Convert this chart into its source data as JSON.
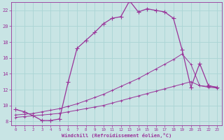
{
  "background_color": "#c8e4e4",
  "line_color": "#993399",
  "grid_color": "#aad4d4",
  "xlabel": "Windchill (Refroidissement éolien,°C)",
  "xlabel_color": "#993399",
  "tick_color": "#993399",
  "xlim": [
    -0.5,
    23.5
  ],
  "ylim": [
    7.5,
    23.0
  ],
  "yticks": [
    8,
    10,
    12,
    14,
    16,
    18,
    20,
    22
  ],
  "xticks": [
    0,
    1,
    2,
    3,
    4,
    5,
    6,
    7,
    8,
    9,
    10,
    11,
    12,
    13,
    14,
    15,
    16,
    17,
    18,
    19,
    20,
    21,
    22,
    23
  ],
  "series1_x": [
    0,
    1,
    2,
    3,
    4,
    5,
    6,
    7,
    8,
    9,
    10,
    11,
    12,
    13,
    14,
    15,
    16,
    17,
    18,
    19,
    20,
    21,
    22,
    23
  ],
  "series1_y": [
    9.5,
    9.2,
    8.7,
    8.1,
    8.1,
    8.3,
    13.0,
    17.2,
    18.2,
    19.2,
    20.3,
    21.0,
    21.2,
    23.2,
    21.8,
    22.2,
    22.0,
    21.8,
    21.0,
    17.0,
    12.3,
    15.3,
    12.5,
    12.3
  ],
  "series2_x": [
    0,
    1,
    2,
    3,
    4,
    5,
    6,
    7,
    8,
    9,
    10,
    11,
    12,
    13,
    14,
    15,
    16,
    17,
    18,
    19,
    20,
    21,
    22,
    23
  ],
  "series2_y": [
    8.5,
    8.6,
    8.7,
    8.8,
    8.9,
    9.0,
    9.2,
    9.4,
    9.6,
    9.8,
    10.0,
    10.3,
    10.6,
    10.9,
    11.2,
    11.5,
    11.8,
    12.1,
    12.4,
    12.7,
    13.0,
    12.5,
    12.3,
    12.2
  ],
  "series3_x": [
    0,
    1,
    2,
    3,
    4,
    5,
    6,
    7,
    8,
    9,
    10,
    11,
    12,
    13,
    14,
    15,
    16,
    17,
    18,
    19,
    20,
    21,
    22,
    23
  ],
  "series3_y": [
    8.8,
    8.9,
    9.0,
    9.2,
    9.4,
    9.6,
    9.9,
    10.2,
    10.6,
    11.0,
    11.4,
    11.9,
    12.4,
    12.9,
    13.4,
    14.0,
    14.6,
    15.2,
    15.8,
    16.5,
    15.2,
    12.5,
    12.4,
    12.3
  ]
}
